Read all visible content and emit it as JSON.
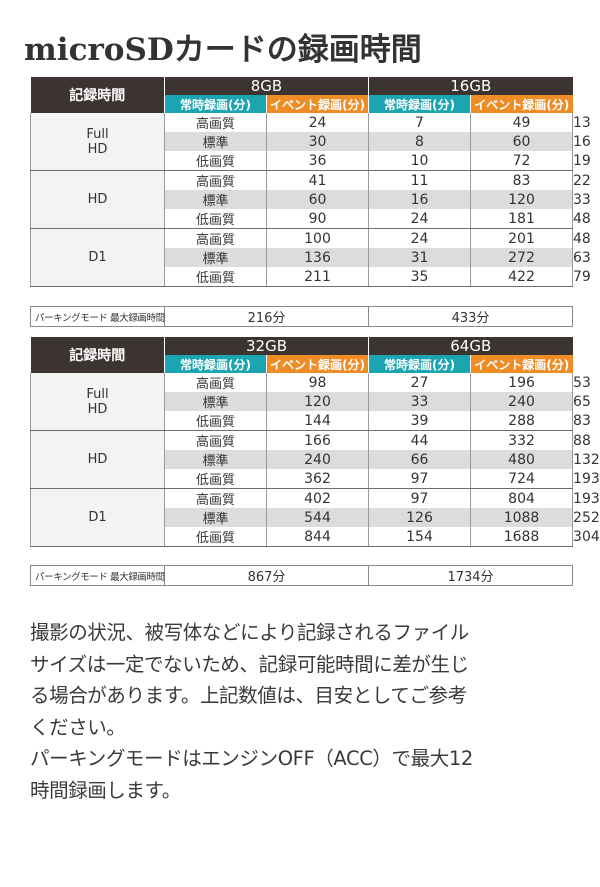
{
  "title": "microSDカードの録画時間",
  "tables": [
    {
      "corner_label": "記録時間",
      "capacities": [
        "8GB",
        "16GB"
      ],
      "subheaders": [
        "常時録画(分)",
        "イベント録画(分)",
        "常時録画(分)",
        "イベント録画(分)"
      ],
      "groups": [
        {
          "resolution_line1": "Full",
          "resolution_line2": "HD",
          "rows": [
            {
              "quality": "高画質",
              "values": [
                "24",
                "7",
                "49",
                "13"
              ]
            },
            {
              "quality": "標準",
              "values": [
                "30",
                "8",
                "60",
                "16"
              ]
            },
            {
              "quality": "低画質",
              "values": [
                "36",
                "10",
                "72",
                "19"
              ]
            }
          ]
        },
        {
          "resolution_line1": "HD",
          "resolution_line2": "",
          "rows": [
            {
              "quality": "高画質",
              "values": [
                "41",
                "11",
                "83",
                "22"
              ]
            },
            {
              "quality": "標準",
              "values": [
                "60",
                "16",
                "120",
                "33"
              ]
            },
            {
              "quality": "低画質",
              "values": [
                "90",
                "24",
                "181",
                "48"
              ]
            }
          ]
        },
        {
          "resolution_line1": "D1",
          "resolution_line2": "",
          "rows": [
            {
              "quality": "高画質",
              "values": [
                "100",
                "24",
                "201",
                "48"
              ]
            },
            {
              "quality": "標準",
              "values": [
                "136",
                "31",
                "272",
                "63"
              ]
            },
            {
              "quality": "低画質",
              "values": [
                "211",
                "35",
                "422",
                "79"
              ]
            }
          ]
        }
      ],
      "parking_label": "パーキングモード 最大録画時間",
      "parking_values": [
        "216分",
        "433分"
      ]
    },
    {
      "corner_label": "記録時間",
      "capacities": [
        "32GB",
        "64GB"
      ],
      "subheaders": [
        "常時録画(分)",
        "イベント録画(分)",
        "常時録画(分)",
        "イベント録画(分)"
      ],
      "groups": [
        {
          "resolution_line1": "Full",
          "resolution_line2": "HD",
          "rows": [
            {
              "quality": "高画質",
              "values": [
                "98",
                "27",
                "196",
                "53"
              ]
            },
            {
              "quality": "標準",
              "values": [
                "120",
                "33",
                "240",
                "65"
              ]
            },
            {
              "quality": "低画質",
              "values": [
                "144",
                "39",
                "288",
                "83"
              ]
            }
          ]
        },
        {
          "resolution_line1": "HD",
          "resolution_line2": "",
          "rows": [
            {
              "quality": "高画質",
              "values": [
                "166",
                "44",
                "332",
                "88"
              ]
            },
            {
              "quality": "標準",
              "values": [
                "240",
                "66",
                "480",
                "132"
              ]
            },
            {
              "quality": "低画質",
              "values": [
                "362",
                "97",
                "724",
                "193"
              ]
            }
          ]
        },
        {
          "resolution_line1": "D1",
          "resolution_line2": "",
          "rows": [
            {
              "quality": "高画質",
              "values": [
                "402",
                "97",
                "804",
                "193"
              ]
            },
            {
              "quality": "標準",
              "values": [
                "544",
                "126",
                "1088",
                "252"
              ]
            },
            {
              "quality": "低画質",
              "values": [
                "844",
                "154",
                "1688",
                "304"
              ]
            }
          ]
        }
      ],
      "parking_label": "パーキングモード 最大録画時間",
      "parking_values": [
        "867分",
        "1734分"
      ]
    }
  ],
  "notes": {
    "lines": [
      "撮影の状況、被写体などにより記録されるファイル",
      "サイズは一定でないため、記録可能時間に差が生じ",
      "る場合があります。上記数値は、目安としてご参考",
      "ください。",
      "パーキングモードはエンジンOFF（ACC）で最大12",
      "時間録画します。"
    ]
  },
  "colors": {
    "header_dark": "#3b3430",
    "continuous_teal": "#1ba5b0",
    "event_orange": "#f08c25"
  }
}
